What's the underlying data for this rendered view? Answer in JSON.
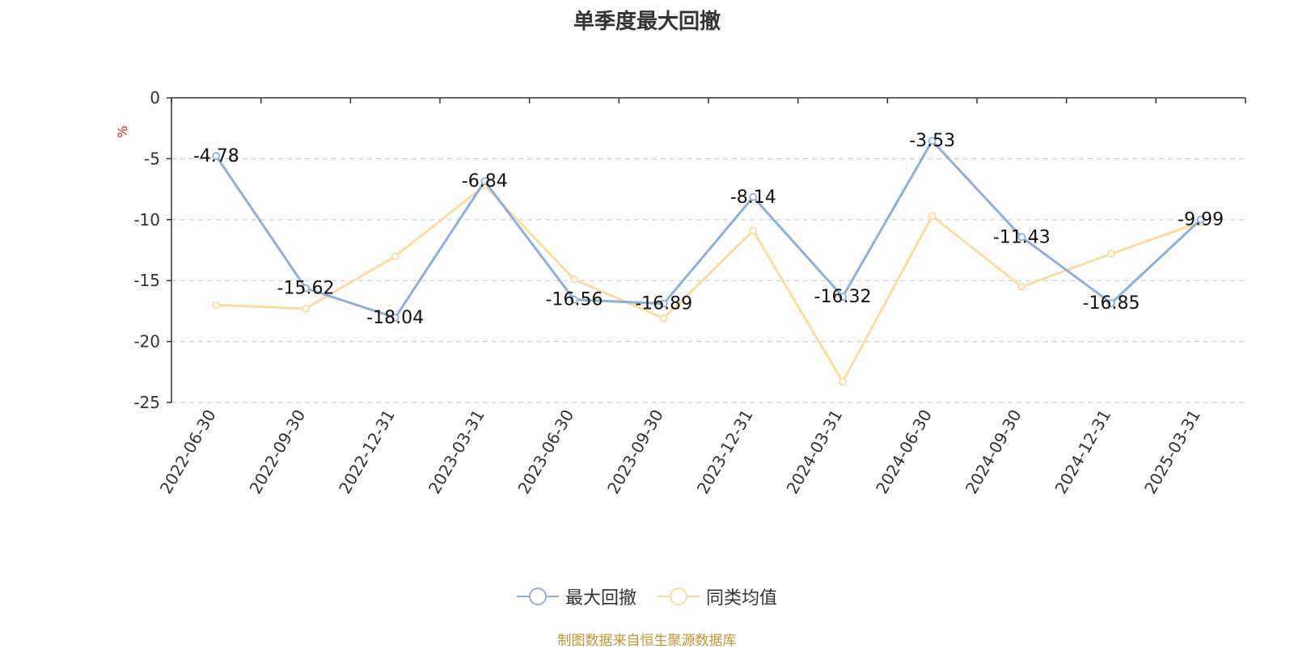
{
  "chart_data": {
    "type": "line",
    "title": "单季度最大回撤",
    "ylabel": "%",
    "xlabel": "",
    "ylim": [
      -25,
      0
    ],
    "yticks": [
      0,
      -5,
      -10,
      -15,
      -20,
      -25
    ],
    "grid": true,
    "legend_position": "bottom",
    "categories": [
      "2022-06-30",
      "2022-09-30",
      "2022-12-31",
      "2023-03-31",
      "2023-06-30",
      "2023-09-30",
      "2023-12-31",
      "2024-03-31",
      "2024-06-30",
      "2024-09-30",
      "2024-12-31",
      "2025-03-31"
    ],
    "series": [
      {
        "name": "最大回撤",
        "color": "#8eaedc",
        "show_labels": true,
        "values": [
          -4.78,
          -15.62,
          -18.04,
          -6.84,
          -16.56,
          -16.89,
          -8.14,
          -16.32,
          -3.53,
          -11.43,
          -16.85,
          -9.99
        ]
      },
      {
        "name": "同类均值",
        "color": "#fcdc9c",
        "show_labels": false,
        "values": [
          -17.0,
          -17.3,
          -13.0,
          -7.2,
          -14.9,
          -18.1,
          -10.9,
          -23.3,
          -9.7,
          -15.5,
          -12.8,
          -10.2
        ]
      }
    ]
  },
  "source_text": "制图数据来自恒生聚源数据库"
}
